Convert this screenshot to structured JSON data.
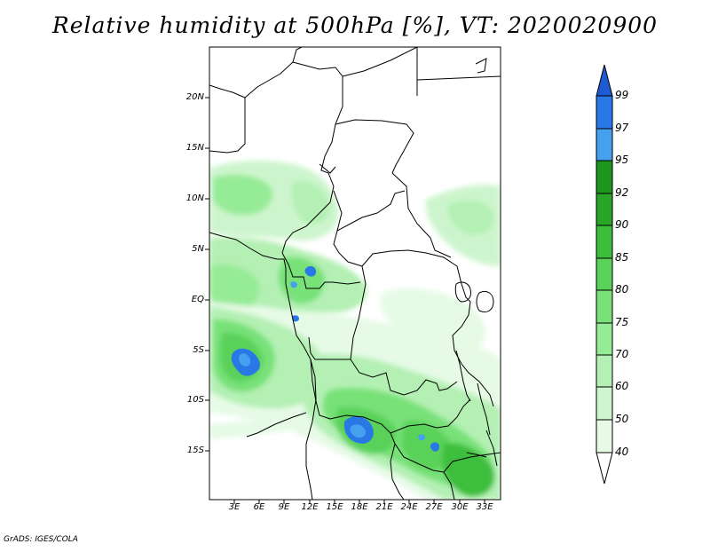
{
  "title": "Relative humidity at 500hPa [%], VT: 2020020900",
  "credit": "GrADS: IGES/COLA",
  "map": {
    "lat_labels": [
      "20N",
      "15N",
      "10N",
      "5N",
      "EQ",
      "5S",
      "10S",
      "15S"
    ],
    "lon_labels": [
      "3E",
      "6E",
      "9E",
      "12E",
      "15E",
      "18E",
      "21E",
      "24E",
      "27E",
      "30E",
      "33E"
    ]
  },
  "colorbar": {
    "levels": [
      "40",
      "50",
      "60",
      "70",
      "75",
      "80",
      "85",
      "90",
      "92",
      "95",
      "97",
      "99"
    ],
    "colors": [
      "#ffffff",
      "#e6fae6",
      "#cdf5cd",
      "#b4f0b4",
      "#96eb96",
      "#78e178",
      "#5ad25a",
      "#3cbe3c",
      "#28a628",
      "#1e961e",
      "#46a0f0",
      "#2a78e6",
      "#1e5ad2"
    ]
  }
}
